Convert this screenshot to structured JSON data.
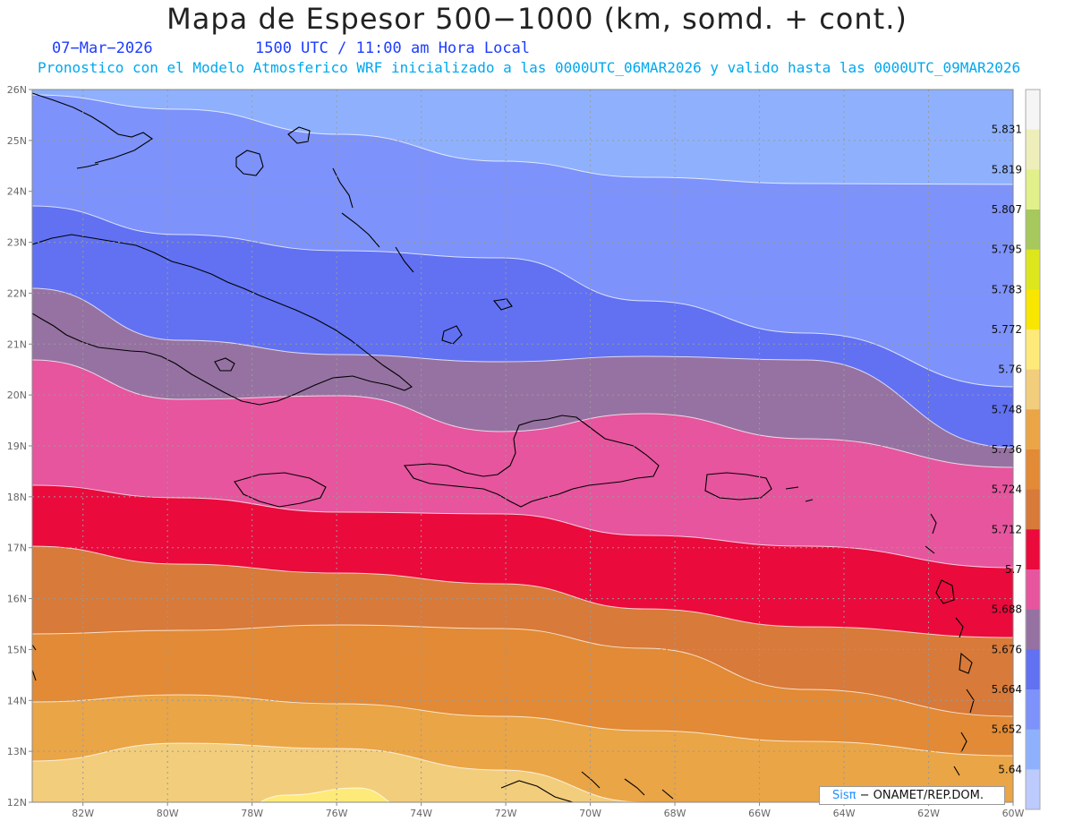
{
  "header": {
    "title": "Mapa de Espesor 500−1000 (km, somd. + cont.)",
    "date": "07−Mar−2026",
    "time": "1500 UTC / 11:00 am Hora Local",
    "subtitle": "Pronostico con el Modelo Atmosferico WRF inicializado a las 0000UTC_06MAR2026 y valido hasta las  0000UTC_09MAR2026"
  },
  "map": {
    "lat_labels": [
      "26N",
      "25N",
      "24N",
      "23N",
      "22N",
      "21N",
      "20N",
      "19N",
      "18N",
      "17N",
      "16N",
      "15N",
      "14N",
      "13N",
      "12N"
    ],
    "lon_labels": [
      "82W",
      "80W",
      "78W",
      "76W",
      "74W",
      "72W",
      "70W",
      "68W",
      "66W",
      "64W",
      "62W",
      "60W"
    ],
    "lat_range": [
      12,
      26
    ],
    "lon_range": [
      -83.2,
      -60
    ],
    "band_colors": [
      "#f5f5f5",
      "#eeeebb",
      "#e2f08a",
      "#a6c85c",
      "#dde61c",
      "#f8e500",
      "#feea78",
      "#f2cd7c",
      "#eaa546",
      "#e28a35",
      "#d87a3a",
      "#ea0a3c",
      "#e6559e",
      "#9672a2",
      "#6171f2",
      "#7d92fa",
      "#8fb1fd",
      "#bdcafd"
    ]
  },
  "colorbar": {
    "labels": [
      "5.831",
      "5.819",
      "5.807",
      "5.795",
      "5.783",
      "5.772",
      "5.76",
      "5.748",
      "5.736",
      "5.724",
      "5.712",
      "5.7",
      "5.688",
      "5.676",
      "5.664",
      "5.652",
      "5.64"
    ]
  },
  "credit": {
    "brand": "Sisπ",
    "text": " − ONAMET/REP.DOM."
  }
}
